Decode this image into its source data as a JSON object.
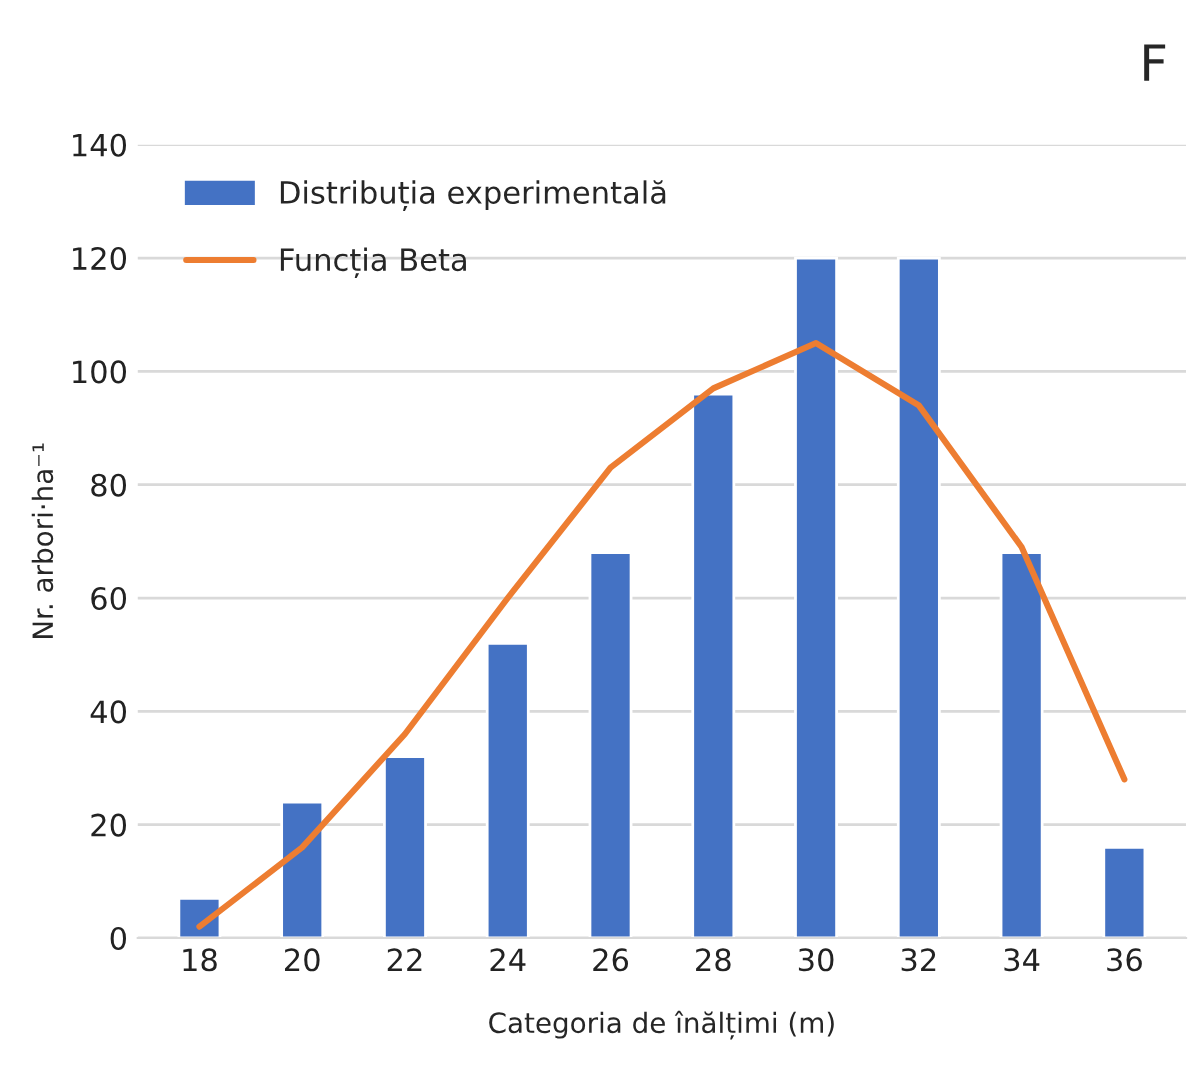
{
  "chart_data": {
    "type": "bar",
    "title": "F",
    "xlabel": "Categoria de înălțimi (m)",
    "ylabel": "Nr. arbori·ha⁻¹",
    "categories": [
      "18",
      "20",
      "22",
      "24",
      "26",
      "28",
      "30",
      "32",
      "34",
      "36"
    ],
    "series": [
      {
        "name": "Distribuția experimentală",
        "color": "#4472c4",
        "values": [
          7,
          24,
          32,
          52,
          68,
          96,
          120,
          120,
          68,
          16
        ]
      },
      {
        "name": "Funcția Beta",
        "type": "line",
        "color": "#ed7d31",
        "values": [
          2,
          16,
          36,
          60,
          83,
          97,
          105,
          94,
          69,
          28
        ]
      }
    ],
    "ylim": [
      0,
      140
    ],
    "yticks": [
      0,
      20,
      40,
      60,
      80,
      100,
      120,
      140
    ],
    "grid": "y",
    "legend": "top left",
    "marker": "none",
    "line_style": "solid"
  }
}
